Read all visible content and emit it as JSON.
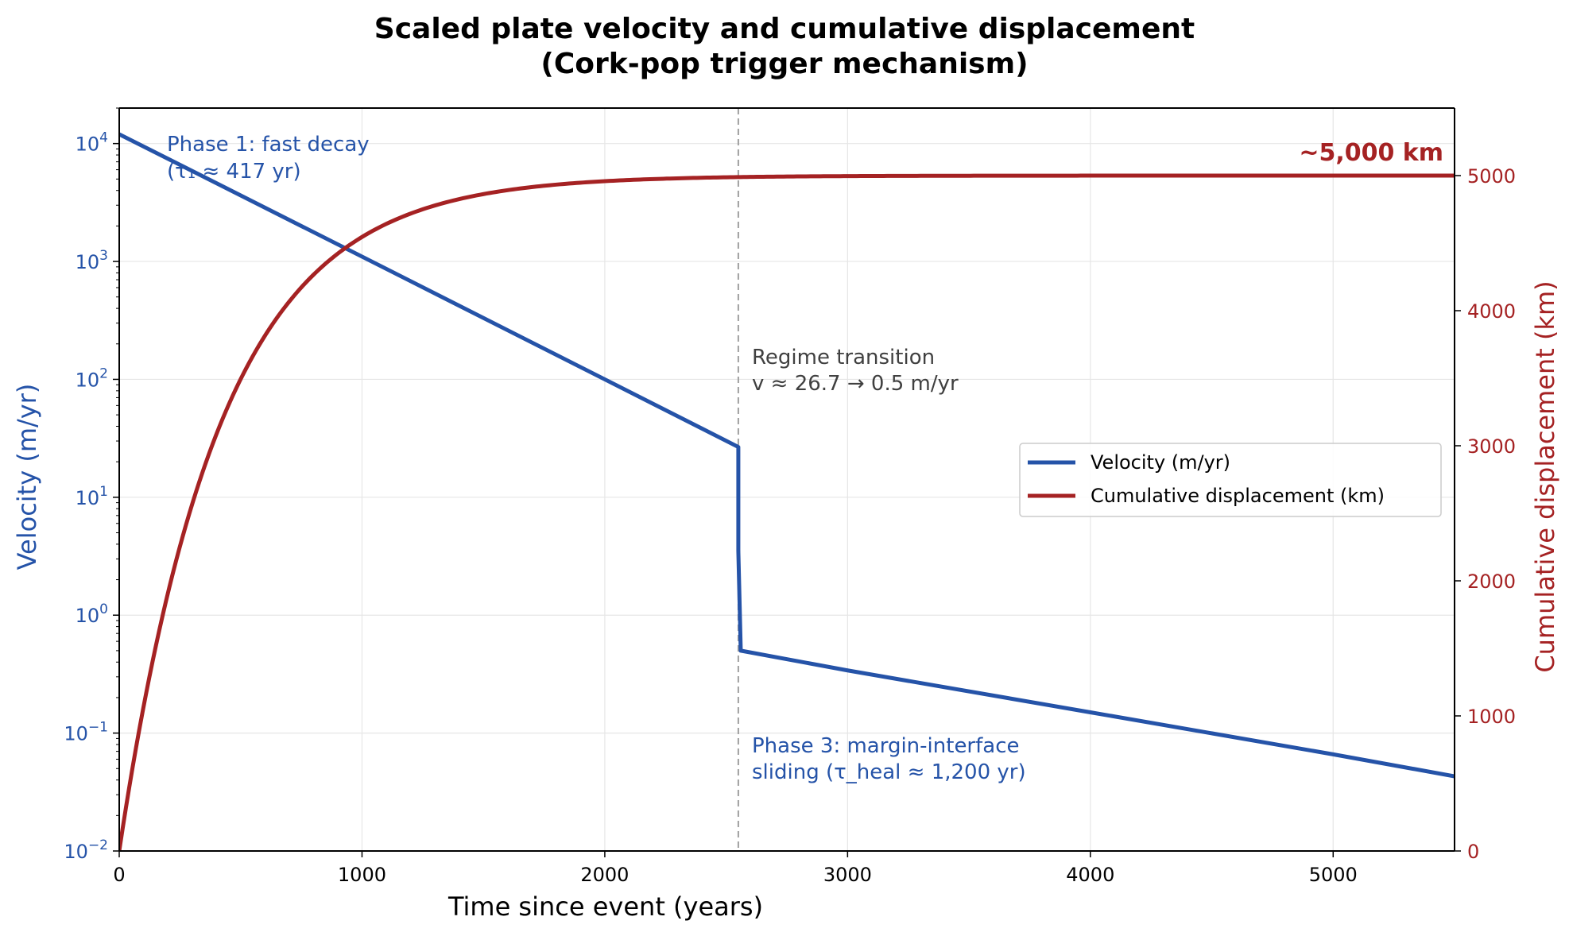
{
  "chart_data": {
    "type": "line",
    "title_line1": "Scaled plate velocity and cumulative displacement",
    "title_line2": "(Cork-pop trigger mechanism)",
    "xlabel": "Time since event (years)",
    "ylabel_left": "Velocity (m/yr)",
    "ylabel_right": "Cumulative displacement (km)",
    "xlim": [
      0,
      5500
    ],
    "ylim_left": [
      0.01,
      20000
    ],
    "ylim_left_scale": "log",
    "ylim_right": [
      0,
      5500
    ],
    "grid": true,
    "legend_position": "center-right",
    "x_ticks": [
      "0",
      "1000",
      "2000",
      "3000",
      "4000",
      "5000"
    ],
    "x_tick_values": [
      0,
      1000,
      2000,
      3000,
      4000,
      5000
    ],
    "left_ticks": [
      {
        "value": 0.01,
        "base": "10",
        "exp": "−2"
      },
      {
        "value": 0.1,
        "base": "10",
        "exp": "−1"
      },
      {
        "value": 1,
        "base": "10",
        "exp": "0"
      },
      {
        "value": 10,
        "base": "10",
        "exp": "1"
      },
      {
        "value": 100,
        "base": "10",
        "exp": "2"
      },
      {
        "value": 1000,
        "base": "10",
        "exp": "3"
      },
      {
        "value": 10000,
        "base": "10",
        "exp": "4"
      }
    ],
    "right_ticks": [
      "0",
      "1000",
      "2000",
      "3000",
      "4000",
      "5000"
    ],
    "right_tick_values": [
      0,
      1000,
      2000,
      3000,
      4000,
      5000
    ],
    "transition_x": 2550,
    "series": [
      {
        "name": "Velocity (m/yr)",
        "axis": "left",
        "color": "#2553a8",
        "x": [
          0,
          1000,
          2000,
          2550,
          2550,
          2560,
          3000,
          4000,
          5000,
          5500
        ],
        "y": [
          12000,
          1100,
          100,
          26.7,
          3.5,
          0.5,
          0.34,
          0.15,
          0.066,
          0.043
        ]
      },
      {
        "name": "Cumulative displacement (km)",
        "axis": "right",
        "color": "#a52223",
        "model": {
          "asymptote": 5000,
          "tau": 417
        },
        "x": [
          0,
          250,
          500,
          1000,
          1500,
          2000,
          2550,
          3000,
          4000,
          5000,
          5500
        ],
        "y": [
          0,
          2255,
          3493,
          4543,
          4863,
          4959,
          4991,
          4999,
          5000,
          5000,
          5000
        ]
      }
    ],
    "annotations": {
      "phase1_line1": "Phase 1: fast decay",
      "phase1_line2": "(τ₁ ≈ 417 yr)",
      "transition_line1": "Regime transition",
      "transition_line2": "v ≈ 26.7 → 0.5 m/yr",
      "phase3_line1": "Phase 3: margin-interface",
      "phase3_line2": "sliding (τ_heal ≈ 1,200 yr)",
      "final_label": "~5,000 km"
    },
    "colors": {
      "velocity": "#2553a8",
      "displacement": "#a52223",
      "transition_line": "#a0a0a0",
      "transition_text": "#404040",
      "grid": "#e6e6e6"
    }
  }
}
